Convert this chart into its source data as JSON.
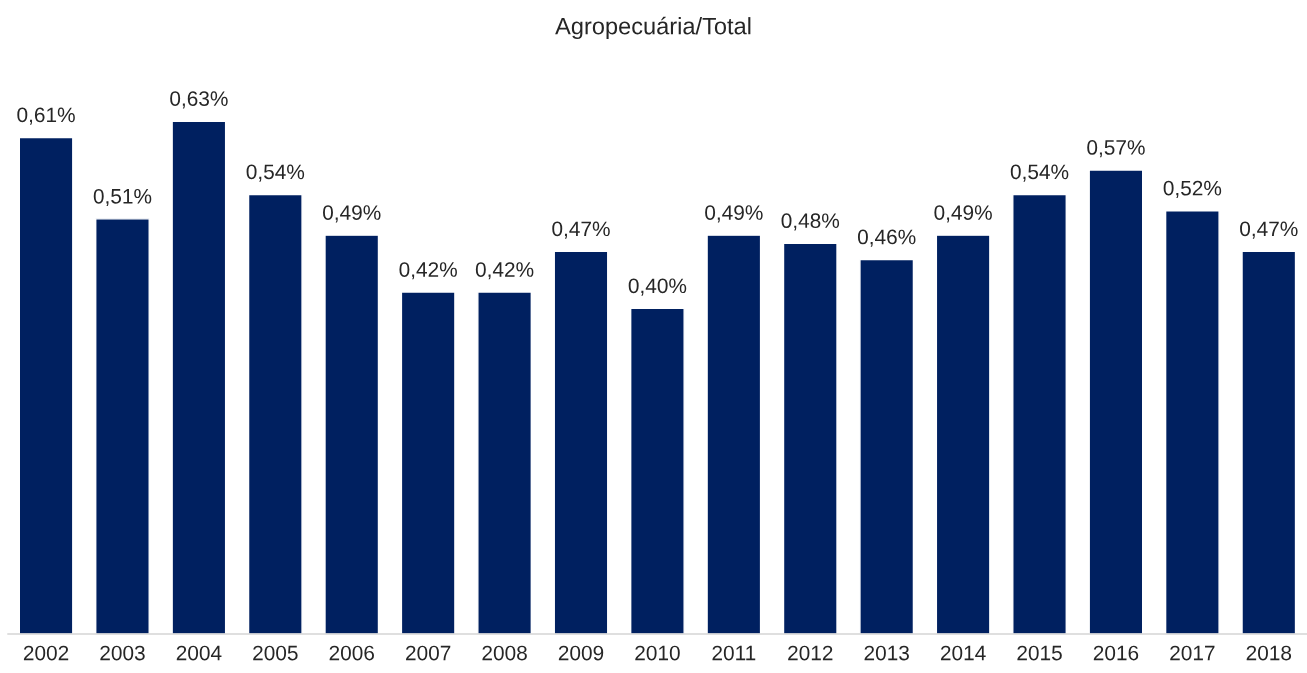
{
  "chart_data": {
    "type": "bar",
    "title": "Agropecuária/Total",
    "categories": [
      "2002",
      "2003",
      "2004",
      "2005",
      "2006",
      "2007",
      "2008",
      "2009",
      "2010",
      "2011",
      "2012",
      "2013",
      "2014",
      "2015",
      "2016",
      "2017",
      "2018"
    ],
    "values": [
      0.61,
      0.51,
      0.63,
      0.54,
      0.49,
      0.42,
      0.42,
      0.47,
      0.4,
      0.49,
      0.48,
      0.46,
      0.49,
      0.54,
      0.57,
      0.52,
      0.47
    ],
    "value_labels": [
      "0,61%",
      "0,51%",
      "0,63%",
      "0,54%",
      "0,49%",
      "0,42%",
      "0,42%",
      "0,47%",
      "0,40%",
      "0,49%",
      "0,48%",
      "0,46%",
      "0,49%",
      "0,54%",
      "0,57%",
      "0,52%",
      "0,47%"
    ],
    "color": "#002060",
    "grid": false,
    "legend": false
  }
}
